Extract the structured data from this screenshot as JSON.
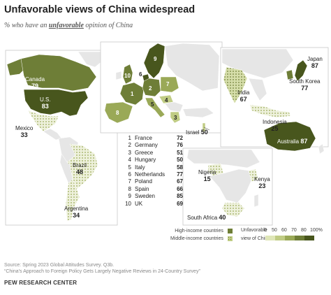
{
  "title": "Unfavorable views of China widespread",
  "subtitle": {
    "prefix": "% who have an ",
    "emphasis": "unfavorable",
    "suffix": " opinion of China"
  },
  "map_labels": {
    "canada": {
      "name": "Canada",
      "value": "79"
    },
    "us": {
      "name": "U.S.",
      "value": "83"
    },
    "mexico": {
      "name": "Mexico",
      "value": "33"
    },
    "brazil": {
      "name": "Brazil",
      "value": "48"
    },
    "argentina": {
      "name": "Argentina",
      "value": "34"
    },
    "israel": {
      "name": "Israel",
      "value": "50"
    },
    "india": {
      "name": "India",
      "value": "67"
    },
    "indonesia": {
      "name": "Indonesia",
      "value": "25"
    },
    "japan": {
      "name": "Japan",
      "value": "87"
    },
    "south_korea": {
      "name": "South Korea",
      "value": "77"
    },
    "australia": {
      "name": "Australia",
      "value": "87"
    },
    "nigeria": {
      "name": "Nigeria",
      "value": "15"
    },
    "kenya": {
      "name": "Kenya",
      "value": "23"
    },
    "south_africa": {
      "name": "South Africa",
      "value": "40"
    }
  },
  "europe_list": [
    {
      "index": "1",
      "country": "France",
      "value": "72"
    },
    {
      "index": "2",
      "country": "Germany",
      "value": "76"
    },
    {
      "index": "3",
      "country": "Greece",
      "value": "51"
    },
    {
      "index": "4",
      "country": "Hungary",
      "value": "50"
    },
    {
      "index": "5",
      "country": "Italy",
      "value": "58"
    },
    {
      "index": "6",
      "country": "Netherlands",
      "value": "77"
    },
    {
      "index": "7",
      "country": "Poland",
      "value": "67"
    },
    {
      "index": "8",
      "country": "Spain",
      "value": "66"
    },
    {
      "index": "9",
      "country": "Sweden",
      "value": "85"
    },
    {
      "index": "10",
      "country": "UK",
      "value": "69"
    }
  ],
  "legend": {
    "high_income": "High-income countries",
    "middle_income": "Middle-income countries",
    "unfavorable": "Unfavorable",
    "view_of_china": "view of China",
    "ticks": [
      "0",
      "50",
      "60",
      "70",
      "80",
      "100%"
    ],
    "scale_colors": [
      "#dfe6b8",
      "#c0cc84",
      "#9aa957",
      "#6e7e37",
      "#48561d"
    ]
  },
  "source": {
    "line1": "Source: Spring 2023 Global Attitudes Survey. Q3b.",
    "line2": "“China’s Approach to Foreign Policy Gets Largely Negative Reviews in 24-Country Survey”"
  },
  "brand": "PEW RESEARCH CENTER"
}
